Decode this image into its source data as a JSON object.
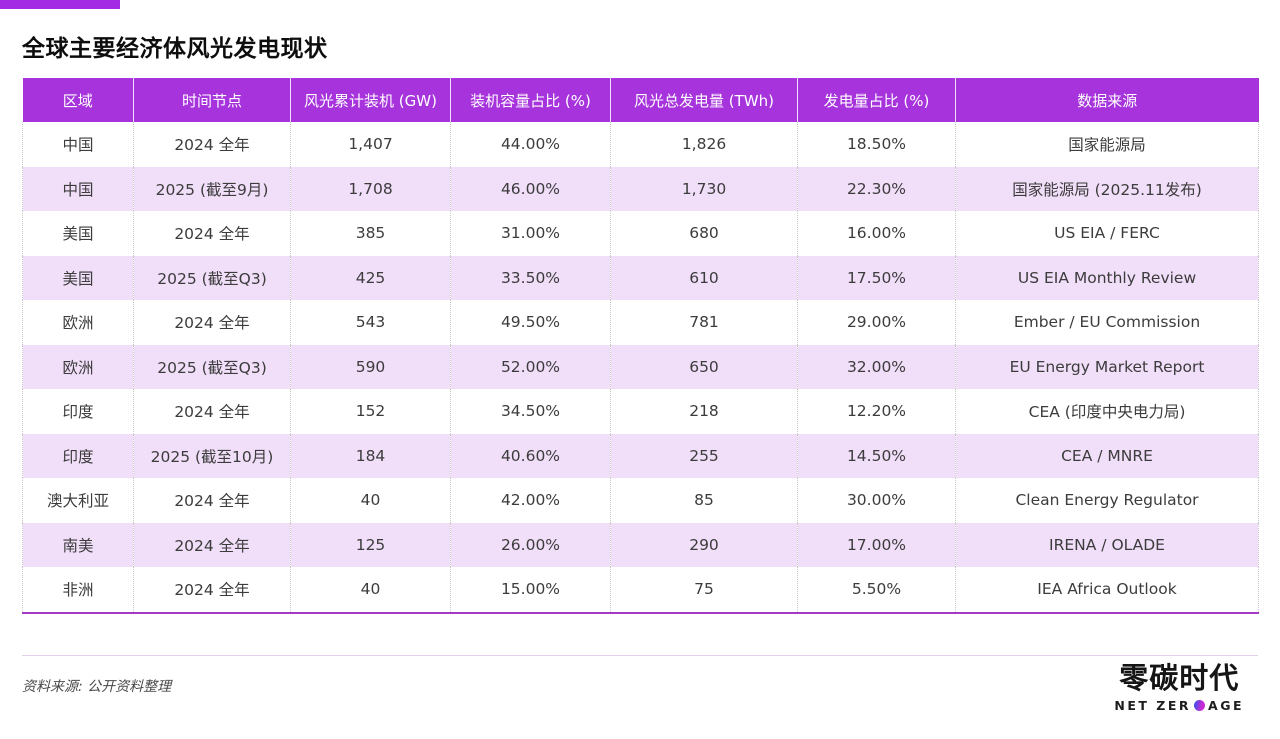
{
  "header": {
    "title": "全球主要经济体风光发电现状"
  },
  "chart_data": {
    "type": "table",
    "title": "全球主要经济体风光发电现状",
    "columns": [
      "区域",
      "时间节点",
      "风光累计装机 (GW)",
      "装机容量占比 (%)",
      "风光总发电量 (TWh)",
      "发电量占比 (%)",
      "数据来源"
    ],
    "rows": [
      [
        "中国",
        "2024 全年",
        "1,407",
        "44.00%",
        "1,826",
        "18.50%",
        "国家能源局"
      ],
      [
        "中国",
        "2025 (截至9月)",
        "1,708",
        "46.00%",
        "1,730",
        "22.30%",
        "国家能源局 (2025.11发布)"
      ],
      [
        "美国",
        "2024 全年",
        "385",
        "31.00%",
        "680",
        "16.00%",
        "US EIA / FERC"
      ],
      [
        "美国",
        "2025 (截至Q3)",
        "425",
        "33.50%",
        "610",
        "17.50%",
        "US EIA Monthly Review"
      ],
      [
        "欧洲",
        "2024 全年",
        "543",
        "49.50%",
        "781",
        "29.00%",
        "Ember / EU Commission"
      ],
      [
        "欧洲",
        "2025 (截至Q3)",
        "590",
        "52.00%",
        "650",
        "32.00%",
        "EU Energy Market Report"
      ],
      [
        "印度",
        "2024 全年",
        "152",
        "34.50%",
        "218",
        "12.20%",
        "CEA (印度中央电力局)"
      ],
      [
        "印度",
        "2025 (截至10月)",
        "184",
        "40.60%",
        "255",
        "14.50%",
        "CEA / MNRE"
      ],
      [
        "澳大利亚",
        "2024 全年",
        "40",
        "42.00%",
        "85",
        "30.00%",
        "Clean Energy Regulator"
      ],
      [
        "南美",
        "2024 全年",
        "125",
        "26.00%",
        "290",
        "17.00%",
        "IRENA / OLADE"
      ],
      [
        "非洲",
        "2024 全年",
        "40",
        "15.00%",
        "75",
        "5.50%",
        "IEA Africa Outlook"
      ]
    ]
  },
  "footer": {
    "source_note": "资料来源: 公开资料整理"
  },
  "logo": {
    "cn": "零碳时代",
    "en_left": "NET ZER",
    "en_right": "AGE"
  },
  "colors": {
    "brand_purple": "#A733DC",
    "accent_bar": "#A32BE3",
    "row_alt": "#F1DEF9",
    "table_bottom_border": "#A43BC2",
    "logo_dot_gradient_start": "#4A4AE8",
    "logo_dot_gradient_end": "#C92BD6"
  }
}
